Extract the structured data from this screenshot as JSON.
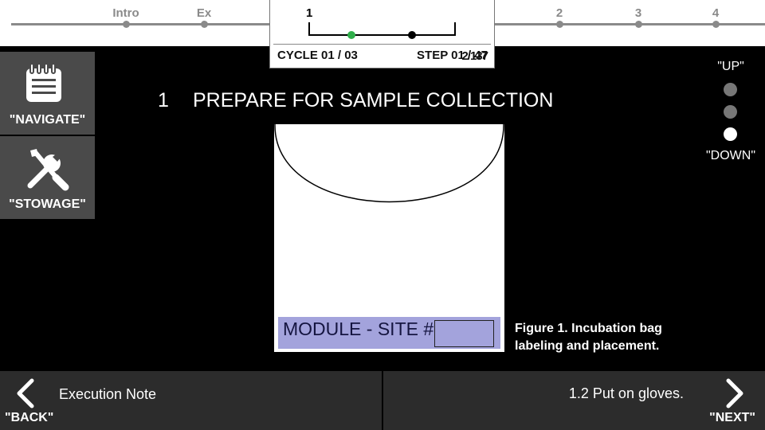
{
  "progress": {
    "markers": [
      {
        "label": "Intro"
      },
      {
        "label": "Ex"
      },
      {
        "label": "2"
      },
      {
        "label": "3"
      },
      {
        "label": "4"
      }
    ],
    "current_section": "1",
    "cycle_text": "CYCLE 01 / 03",
    "step_text": "STEP 01 / 47",
    "step_overlay_text": "2/137"
  },
  "sidebar": {
    "navigate_label": "\"NAVIGATE\"",
    "stowage_label": "\"STOWAGE\""
  },
  "step": {
    "number": "1",
    "title": "PREPARE FOR SAMPLE COLLECTION"
  },
  "figure": {
    "label_text": "MODULE - SITE #",
    "caption": "Figure 1. Incubation bag labeling and placement."
  },
  "voice": {
    "up_label": "\"UP\"",
    "down_label": "\"DOWN\""
  },
  "bottom": {
    "back_label": "\"BACK\"",
    "execution_note": "Execution Note",
    "next_step": "1.2 Put on gloves.",
    "next_label": "\"NEXT\""
  },
  "colors": {
    "panel": "#4a4a4a",
    "bottom_bar": "#2c2c2c",
    "label_fill": "#a3a3dc",
    "active_dot": "#2fae4a"
  },
  "icons": [
    "notepad-icon",
    "tools-icon",
    "chevron-left-icon",
    "chevron-right-icon"
  ]
}
